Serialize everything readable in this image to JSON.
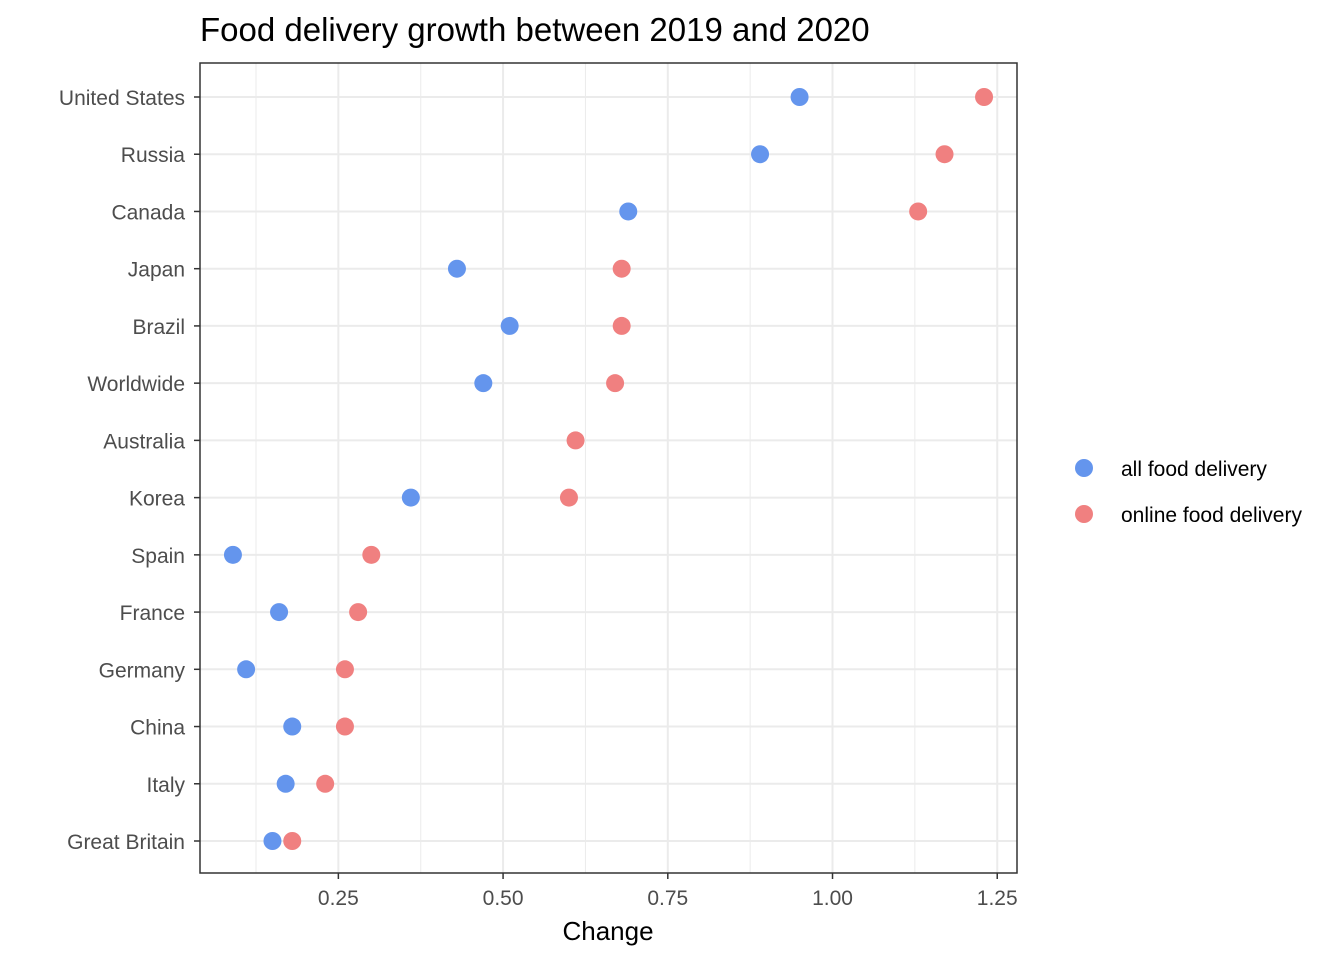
{
  "chart_data": {
    "type": "scatter",
    "title": "Food delivery growth between 2019 and 2020",
    "xlabel": "Change",
    "ylabel": "",
    "xlim": [
      0.04,
      1.28
    ],
    "x_ticks": [
      0.25,
      0.5,
      0.75,
      1.0,
      1.25
    ],
    "x_tick_labels": [
      "0.25",
      "0.50",
      "0.75",
      "1.00",
      "1.25"
    ],
    "categories": [
      "United States",
      "Russia",
      "Canada",
      "Japan",
      "Brazil",
      "Worldwide",
      "Australia",
      "Korea",
      "Spain",
      "France",
      "Germany",
      "China",
      "Italy",
      "Great Britain"
    ],
    "grid": true,
    "legend_position": "right",
    "series": [
      {
        "name": "all food delivery",
        "color": "#6495ED",
        "values": [
          0.95,
          0.89,
          0.69,
          0.43,
          0.51,
          0.47,
          null,
          0.36,
          0.09,
          0.16,
          0.11,
          0.18,
          0.17,
          0.15
        ]
      },
      {
        "name": "online food delivery",
        "color": "#F08080",
        "values": [
          1.23,
          1.17,
          1.13,
          0.68,
          0.68,
          0.67,
          0.61,
          0.6,
          0.3,
          0.28,
          0.26,
          0.26,
          0.23,
          0.18
        ]
      }
    ]
  }
}
